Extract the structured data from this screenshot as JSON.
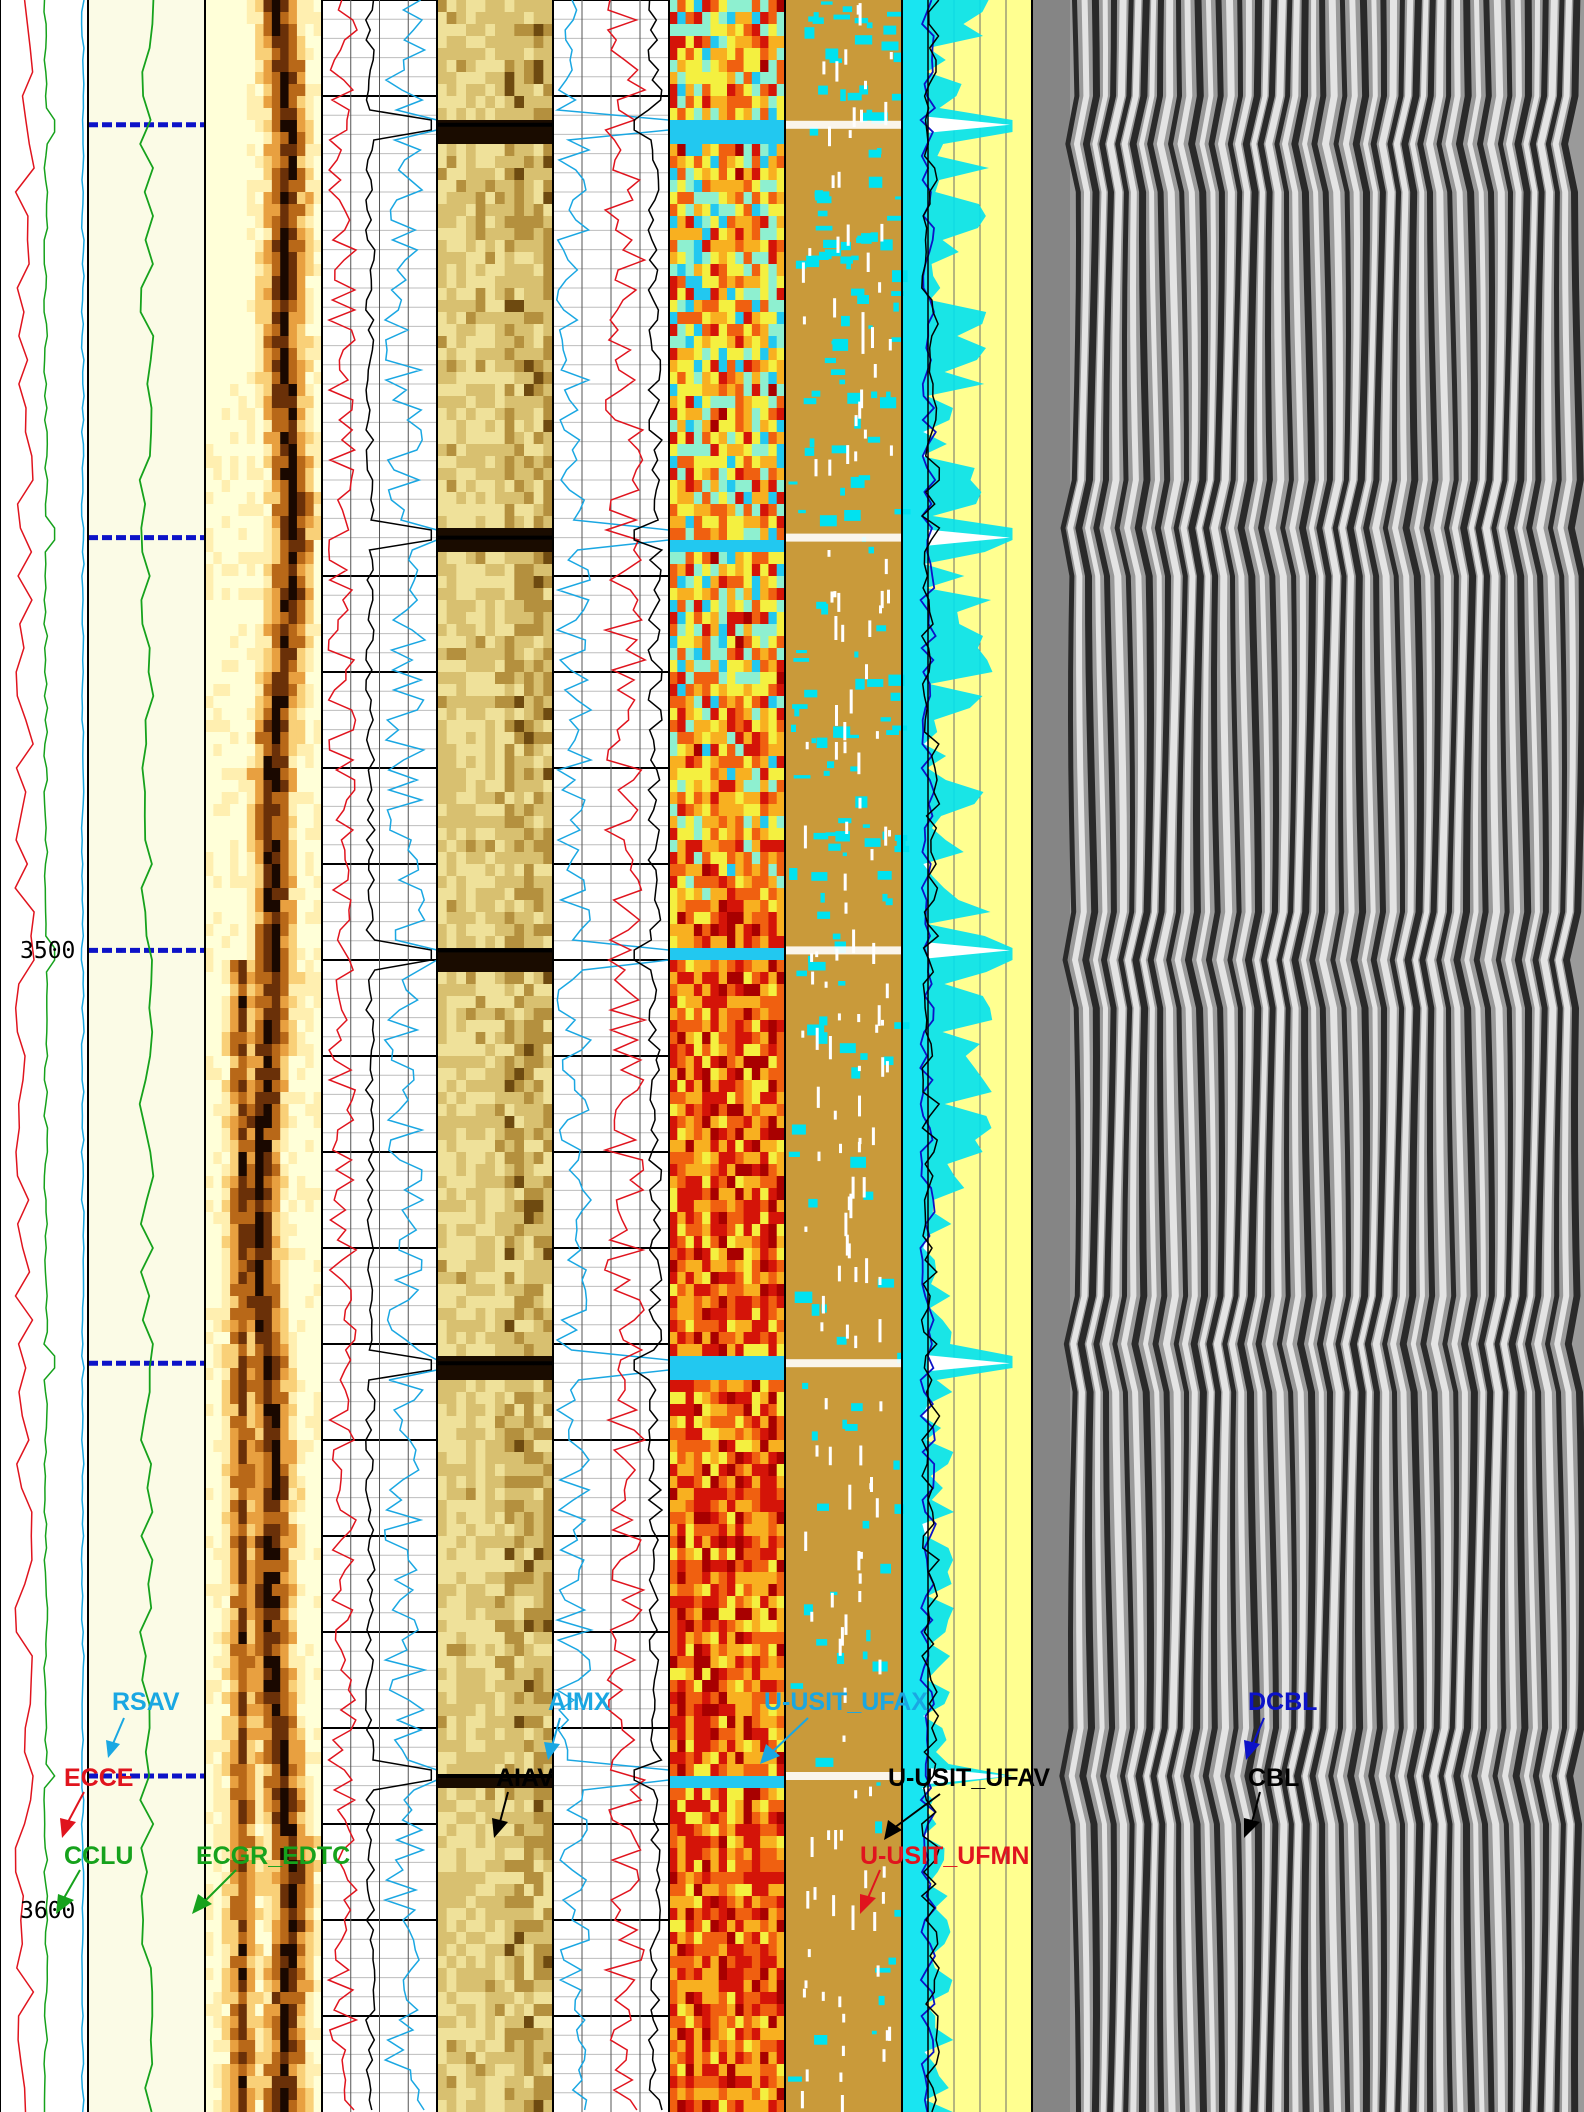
{
  "chart_data": {
    "type": "line",
    "title": "",
    "depth_axis": {
      "ylim": [
        3401,
        3621
      ],
      "labels": [
        3500,
        3600
      ]
    },
    "colors": {
      "red": "#e0141e",
      "green": "#16a21c",
      "cyan": "#1aa7e2",
      "blue": "#0c12c8",
      "black": "#000000",
      "cream": "#fbfbe6",
      "yellow": "#ffff90",
      "ochre": "#c99a3a",
      "cyanfill": "#00e2f0",
      "gray": "#8a8a8a"
    },
    "curve_labels": {
      "rsav": "RSAV",
      "ecce": "ECCE",
      "cclu": "CCLU",
      "ecgr": "ECGR_EDTC",
      "aimx": "AIMX",
      "aiav": "AIAV",
      "ufax": "U-USIT_UFAX",
      "ufav": "U-USIT_UFAV",
      "ufmn": "U-USIT_UFMN",
      "dcbl": "DCBL",
      "cbl": "CBL"
    },
    "collar_depths": [
      3414.0,
      3457.0,
      3500.0,
      3543.0,
      3586.0
    ],
    "tracks": [
      {
        "name": "depth/ecce/cclu/rsav",
        "x_range": [
          0,
          88
        ]
      },
      {
        "name": "ecgr",
        "x_range": [
          88,
          205
        ]
      },
      {
        "name": "amplitude-image",
        "x_range": [
          205,
          322
        ]
      },
      {
        "name": "aiav/aimx",
        "x_range": [
          322,
          437
        ]
      },
      {
        "name": "transit-time-image",
        "x_range": [
          437,
          553
        ]
      },
      {
        "name": "usit-ufax/ufav/ufmn",
        "x_range": [
          553,
          669
        ]
      },
      {
        "name": "impedance-map",
        "x_range": [
          669,
          785
        ]
      },
      {
        "name": "solid-liquid-gas-map",
        "x_range": [
          785,
          902
        ]
      },
      {
        "name": "cbl/dcbl",
        "x_range": [
          902,
          1032
        ]
      },
      {
        "name": "vdl",
        "x_range": [
          1032,
          1584
        ]
      }
    ]
  }
}
